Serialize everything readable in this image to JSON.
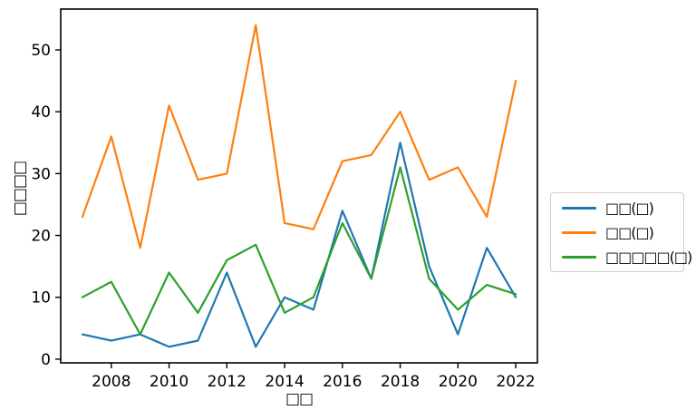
{
  "chart_data": {
    "type": "line",
    "title": "",
    "xlabel": "□□",
    "ylabel": "□□□□",
    "x": [
      2007,
      2008,
      2009,
      2010,
      2011,
      2012,
      2013,
      2014,
      2015,
      2016,
      2017,
      2018,
      2019,
      2020,
      2021,
      2022
    ],
    "series": [
      {
        "name": "□□(□)",
        "color": "#1f77b4",
        "values": [
          4,
          3,
          4,
          2,
          3,
          14,
          2,
          10,
          8,
          24,
          13,
          35,
          15,
          4,
          18,
          10
        ]
      },
      {
        "name": "□□(□)",
        "color": "#ff7f0e",
        "values": [
          23,
          36,
          18,
          41,
          29,
          30,
          54,
          22,
          21,
          32,
          33,
          40,
          29,
          31,
          23,
          45
        ]
      },
      {
        "name": "□□□□□(□)",
        "color": "#2ca02c",
        "values": [
          10,
          12.5,
          4,
          14,
          7.5,
          16,
          18.5,
          7.5,
          10,
          22,
          13,
          31,
          13,
          8,
          12,
          10.5
        ]
      }
    ],
    "xticks": [
      2008,
      2010,
      2012,
      2014,
      2016,
      2018,
      2020,
      2022
    ],
    "yticks": [
      0,
      10,
      20,
      30,
      40,
      50
    ],
    "xlim": [
      2006.25,
      2022.75
    ],
    "ylim": [
      -0.6,
      56.6
    ],
    "grid": false,
    "legend_position": "center-right-outside",
    "axis_color": "#000000",
    "background_color": "#ffffff"
  }
}
